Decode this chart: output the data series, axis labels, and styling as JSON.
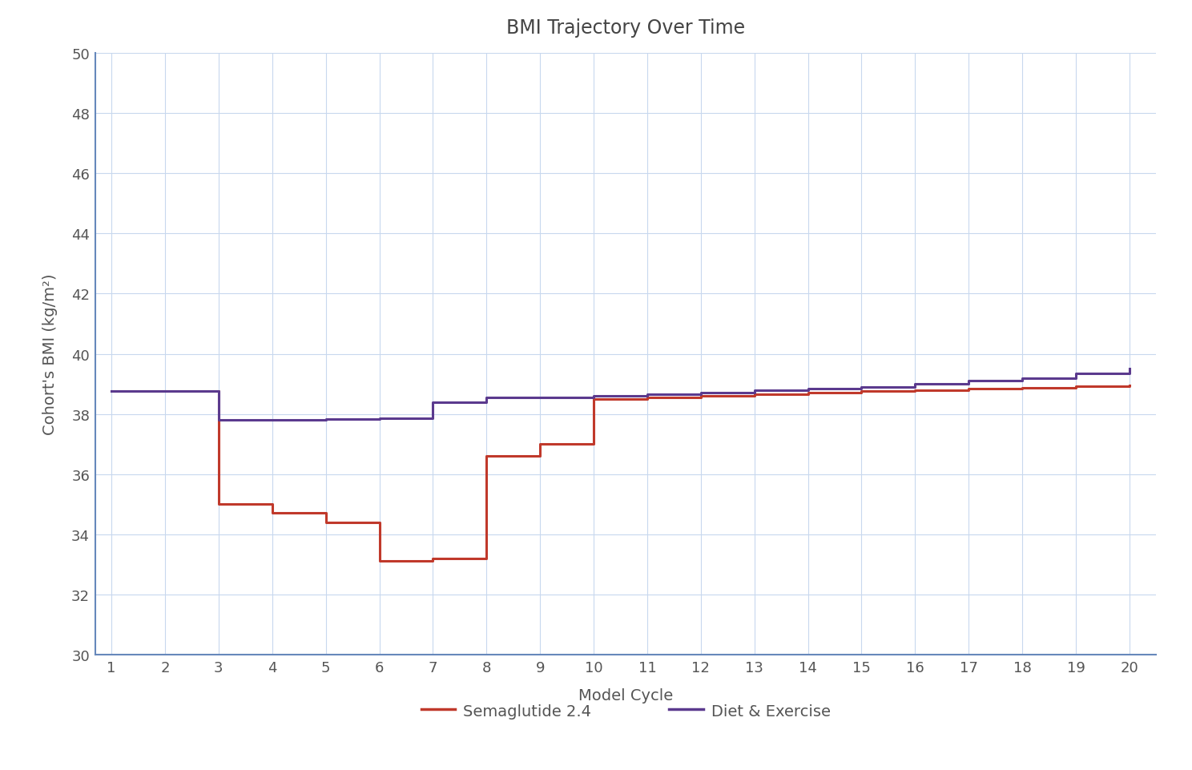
{
  "title": "BMI Trajectory Over Time",
  "xlabel": "Model Cycle",
  "ylabel": "Cohort's BMI (kg/m²)",
  "xlim": [
    1,
    20
  ],
  "ylim": [
    30,
    50
  ],
  "yticks": [
    30,
    32,
    34,
    36,
    38,
    40,
    42,
    44,
    46,
    48,
    50
  ],
  "xticks": [
    1,
    2,
    3,
    4,
    5,
    6,
    7,
    8,
    9,
    10,
    11,
    12,
    13,
    14,
    15,
    16,
    17,
    18,
    19,
    20
  ],
  "sema_x": [
    1,
    2,
    3,
    4,
    5,
    6,
    7,
    8,
    9,
    10,
    11,
    12,
    13,
    14,
    15,
    16,
    17,
    18,
    19,
    20
  ],
  "sema_y": [
    38.75,
    38.75,
    35.0,
    34.7,
    34.4,
    33.1,
    33.2,
    36.6,
    37.0,
    38.5,
    38.55,
    38.6,
    38.65,
    38.7,
    38.75,
    38.8,
    38.85,
    38.88,
    38.92,
    38.95
  ],
  "diet_x": [
    1,
    2,
    3,
    4,
    5,
    6,
    7,
    8,
    9,
    10,
    11,
    12,
    13,
    14,
    15,
    16,
    17,
    18,
    19,
    20
  ],
  "diet_y": [
    38.75,
    38.75,
    37.8,
    37.8,
    37.82,
    37.85,
    38.4,
    38.55,
    38.55,
    38.6,
    38.65,
    38.7,
    38.8,
    38.85,
    38.9,
    39.0,
    39.1,
    39.2,
    39.35,
    39.5
  ],
  "sema_color": "#C0392B",
  "diet_color": "#5B3A8E",
  "sema_label": "Semaglutide 2.4",
  "diet_label": "Diet & Exercise",
  "background_color": "#FFFFFF",
  "grid_color": "#C8D8EE",
  "left_spine_color": "#6688BB",
  "bottom_spine_color": "#6688BB",
  "title_color": "#444444",
  "tick_color": "#555555",
  "label_color": "#555555",
  "title_fontsize": 17,
  "label_fontsize": 14,
  "tick_fontsize": 13,
  "line_width": 2.2
}
